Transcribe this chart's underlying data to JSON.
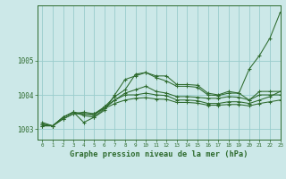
{
  "title": "Graphe pression niveau de la mer (hPa)",
  "bg_color": "#cce8e8",
  "line_color": "#2d6a2d",
  "grid_color": "#99cccc",
  "xlim": [
    -0.5,
    23
  ],
  "ylim": [
    1002.7,
    1006.6
  ],
  "yticks": [
    1003,
    1004,
    1005
  ],
  "xticks": [
    0,
    1,
    2,
    3,
    4,
    5,
    6,
    7,
    8,
    9,
    10,
    11,
    12,
    13,
    14,
    15,
    16,
    17,
    18,
    19,
    20,
    21,
    22,
    23
  ],
  "series": [
    [
      1003.15,
      1003.1,
      1003.35,
      1003.5,
      1003.45,
      1003.4,
      1003.65,
      1003.95,
      1004.15,
      1004.6,
      1004.65,
      1004.55,
      1004.55,
      1004.3,
      1004.3,
      1004.28,
      1004.05,
      1004.0,
      1004.1,
      1004.05,
      1004.75,
      1005.15,
      1005.65,
      1006.4
    ],
    [
      1003.2,
      1003.1,
      1003.35,
      1003.5,
      1003.4,
      1003.35,
      1003.55,
      1004.0,
      1004.45,
      1004.55,
      1004.65,
      1004.5,
      1004.4,
      1004.25,
      1004.25,
      1004.22,
      1004.0,
      1003.98,
      1004.05,
      1004.05,
      1003.85,
      1004.1,
      1004.1,
      1004.1
    ],
    [
      1003.15,
      1003.1,
      1003.35,
      1003.5,
      1003.2,
      1003.35,
      1003.6,
      1003.85,
      1004.05,
      1004.15,
      1004.25,
      1004.1,
      1004.05,
      1003.95,
      1003.95,
      1003.93,
      1003.9,
      1003.9,
      1003.95,
      1003.93,
      1003.85,
      1004.0,
      1004.0,
      1004.0
    ],
    [
      1003.1,
      1003.1,
      1003.3,
      1003.45,
      1003.45,
      1003.45,
      1003.65,
      1003.85,
      1004.0,
      1004.0,
      1004.05,
      1004.0,
      1003.98,
      1003.85,
      1003.85,
      1003.83,
      1003.75,
      1003.75,
      1003.8,
      1003.8,
      1003.75,
      1003.85,
      1003.95,
      1004.1
    ],
    [
      1003.1,
      1003.1,
      1003.3,
      1003.45,
      1003.5,
      1003.45,
      1003.6,
      1003.75,
      1003.85,
      1003.9,
      1003.92,
      1003.88,
      1003.87,
      1003.78,
      1003.78,
      1003.76,
      1003.7,
      1003.7,
      1003.72,
      1003.72,
      1003.68,
      1003.75,
      1003.8,
      1003.85
    ]
  ]
}
